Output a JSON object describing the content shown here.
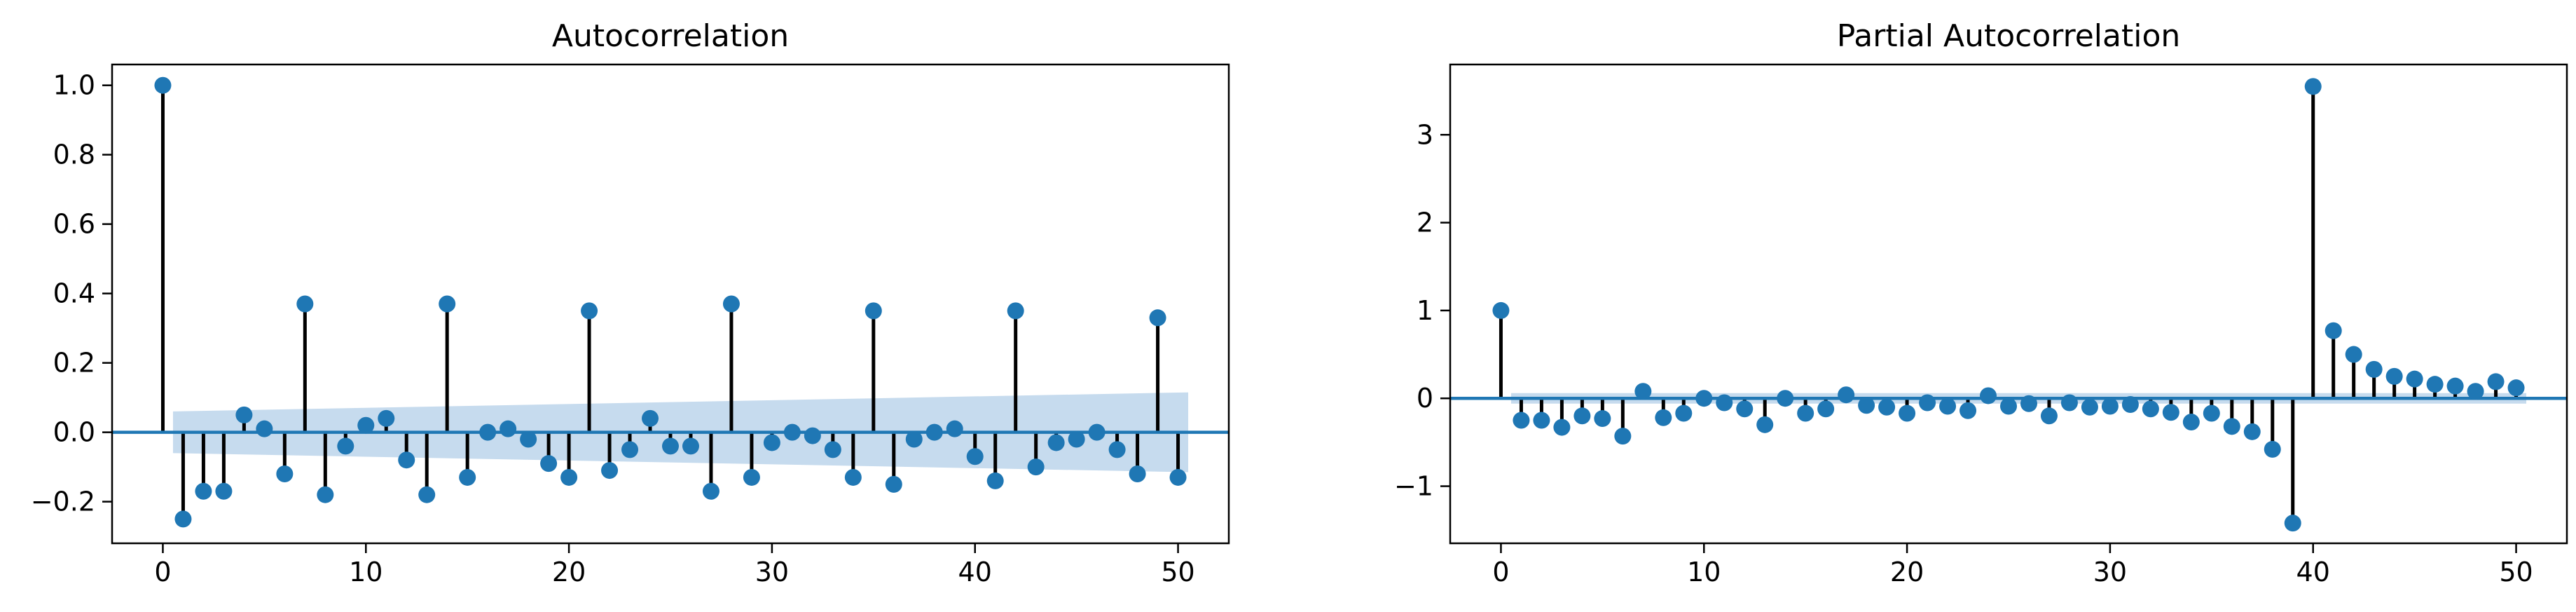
{
  "colors": {
    "marker": "#1f77b4",
    "stem": "#000000",
    "baseline": "#1f77b4",
    "confidence_band": "#c6dbee"
  },
  "chart_data": [
    {
      "type": "scatter",
      "style": "stem",
      "title": "Autocorrelation",
      "xlabel": "",
      "ylabel": "",
      "xlim": [
        -2.5,
        52.5
      ],
      "ylim": [
        -0.32,
        1.06
      ],
      "xticks": [
        0,
        10,
        20,
        30,
        40,
        50
      ],
      "xtick_labels": [
        "0",
        "10",
        "20",
        "30",
        "40",
        "50"
      ],
      "yticks": [
        -0.2,
        0.0,
        0.2,
        0.4,
        0.6,
        0.8,
        1.0
      ],
      "ytick_labels": [
        "−0.2",
        "0.0",
        "0.2",
        "0.4",
        "0.6",
        "0.8",
        "1.0"
      ],
      "grid": false,
      "x": [
        0,
        1,
        2,
        3,
        4,
        5,
        6,
        7,
        8,
        9,
        10,
        11,
        12,
        13,
        14,
        15,
        16,
        17,
        18,
        19,
        20,
        21,
        22,
        23,
        24,
        25,
        26,
        27,
        28,
        29,
        30,
        31,
        32,
        33,
        34,
        35,
        36,
        37,
        38,
        39,
        40,
        41,
        42,
        43,
        44,
        45,
        46,
        47,
        48,
        49,
        50
      ],
      "values": [
        1.0,
        -0.25,
        -0.17,
        -0.17,
        0.05,
        0.01,
        -0.12,
        0.37,
        -0.18,
        -0.04,
        0.02,
        0.04,
        -0.08,
        -0.18,
        0.37,
        -0.13,
        0.0,
        0.01,
        -0.02,
        -0.09,
        -0.13,
        0.35,
        -0.11,
        -0.05,
        0.04,
        -0.04,
        -0.04,
        -0.17,
        0.37,
        -0.13,
        -0.03,
        0.0,
        -0.01,
        -0.05,
        -0.13,
        0.35,
        -0.15,
        -0.02,
        0.0,
        0.01,
        -0.07,
        -0.14,
        0.35,
        -0.1,
        -0.03,
        -0.02,
        0.0,
        -0.05,
        -0.12,
        0.33,
        -0.13
      ],
      "confidence_band": {
        "x_start": 0.5,
        "x_end": 50.5,
        "upper_start": 0.06,
        "upper_end": 0.115
      }
    },
    {
      "type": "scatter",
      "style": "stem",
      "title": "Partial Autocorrelation",
      "xlabel": "",
      "ylabel": "",
      "xlim": [
        -2.5,
        52.5
      ],
      "ylim": [
        -1.65,
        3.8
      ],
      "xticks": [
        0,
        10,
        20,
        30,
        40,
        50
      ],
      "xtick_labels": [
        "0",
        "10",
        "20",
        "30",
        "40",
        "50"
      ],
      "yticks": [
        -1,
        0,
        1,
        2,
        3
      ],
      "ytick_labels": [
        "−1",
        "0",
        "1",
        "2",
        "3"
      ],
      "grid": false,
      "x": [
        0,
        1,
        2,
        3,
        4,
        5,
        6,
        7,
        8,
        9,
        10,
        11,
        12,
        13,
        14,
        15,
        16,
        17,
        18,
        19,
        20,
        21,
        22,
        23,
        24,
        25,
        26,
        27,
        28,
        29,
        30,
        31,
        32,
        33,
        34,
        35,
        36,
        37,
        38,
        39,
        40,
        41,
        42,
        43,
        44,
        45,
        46,
        47,
        48,
        49,
        50
      ],
      "values": [
        1.0,
        -0.25,
        -0.25,
        -0.33,
        -0.2,
        -0.23,
        -0.43,
        0.08,
        -0.22,
        -0.17,
        0.0,
        -0.05,
        -0.12,
        -0.3,
        0.0,
        -0.17,
        -0.12,
        0.04,
        -0.08,
        -0.1,
        -0.17,
        -0.05,
        -0.09,
        -0.14,
        0.03,
        -0.09,
        -0.06,
        -0.2,
        -0.05,
        -0.1,
        -0.09,
        -0.07,
        -0.12,
        -0.16,
        -0.27,
        -0.17,
        -0.32,
        -0.38,
        -0.58,
        -1.42,
        3.55,
        0.77,
        0.5,
        0.33,
        0.25,
        0.22,
        0.16,
        0.14,
        0.08,
        0.19,
        0.12
      ],
      "confidence_band": {
        "x_start": 0.5,
        "x_end": 50.5,
        "upper_start": 0.06,
        "upper_end": 0.06
      }
    }
  ]
}
